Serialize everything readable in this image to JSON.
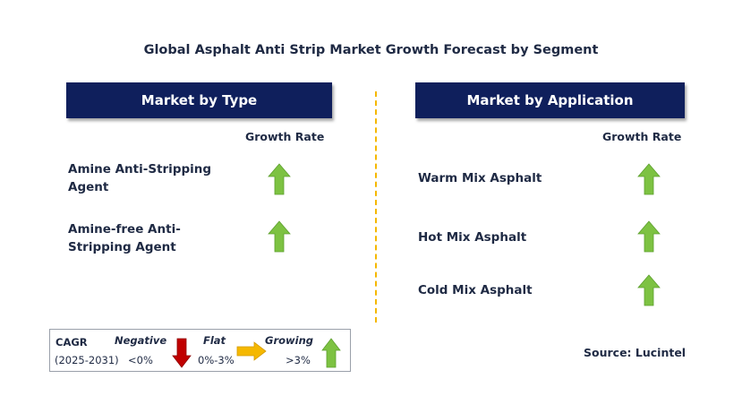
{
  "title": "Global Asphalt Anti Strip Market Growth Forecast by Segment",
  "left_panel": {
    "header": "Market by Type",
    "growth_label": "Growth Rate",
    "items": [
      {
        "line1": "Amine Anti-Stripping",
        "line2": "Agent",
        "trend": "growing",
        "arrow_color": "#7dc242"
      },
      {
        "line1": "Amine-free Anti-",
        "line2": "Stripping Agent",
        "trend": "growing",
        "arrow_color": "#7dc242"
      }
    ]
  },
  "right_panel": {
    "header": "Market by Application",
    "growth_label": "Growth Rate",
    "items": [
      {
        "label": "Warm Mix Asphalt",
        "trend": "growing",
        "arrow_color": "#7dc242"
      },
      {
        "label": "Hot Mix Asphalt",
        "trend": "growing",
        "arrow_color": "#7dc242"
      },
      {
        "label": "Cold Mix Asphalt",
        "trend": "growing",
        "arrow_color": "#7dc242"
      }
    ]
  },
  "legend": {
    "cagr_label": "CAGR",
    "period": "(2025-2031)",
    "negative_label": "Negative",
    "negative_value": "<0%",
    "flat_label": "Flat",
    "flat_value": "0%-3%",
    "growing_label": "Growing",
    "growing_value": ">3%",
    "negative_color": "#c00000",
    "flat_color": "#f5b800",
    "growing_color": "#7dc242"
  },
  "source": "Source: Lucintel",
  "colors": {
    "header_bg": "#0f1f5c",
    "text": "#1f2a44",
    "divider": "#f5b800"
  }
}
